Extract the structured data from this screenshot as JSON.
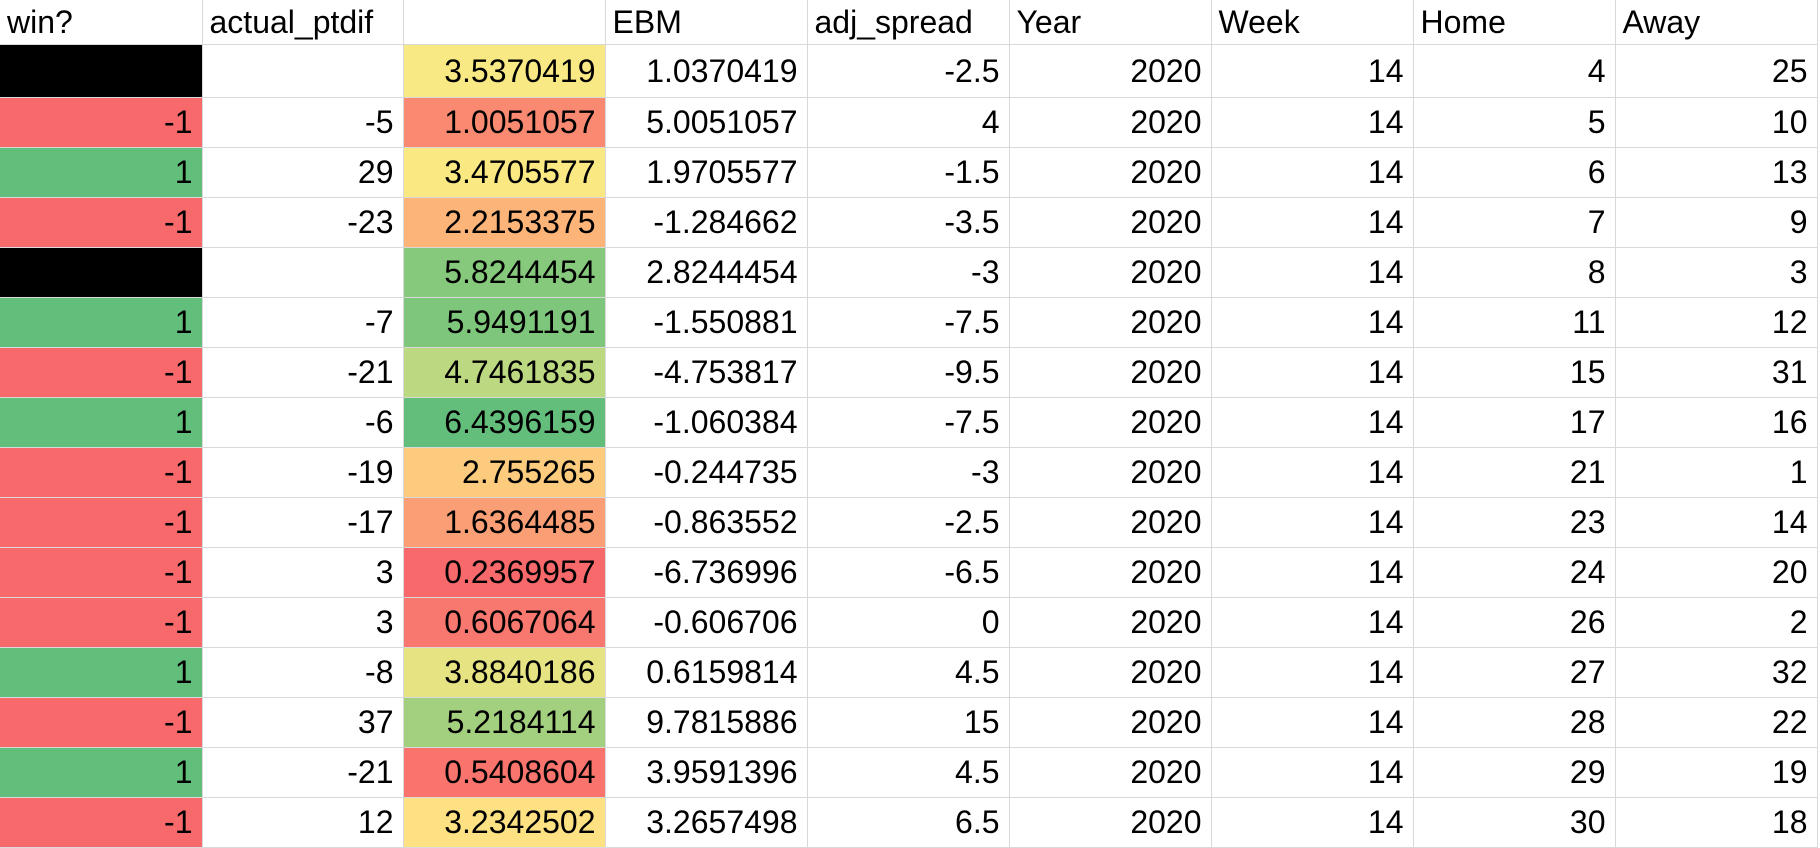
{
  "colors": {
    "win_positive": "#62bf7b",
    "win_negative": "#f8696b",
    "win_blank": "#000000",
    "grid_line": "#d9d9d9"
  },
  "sheet": {
    "headers": [
      "win?",
      "actual_ptdif",
      "",
      "EBM",
      "adj_spread",
      "Year",
      "Week",
      "Home",
      "Away"
    ],
    "rows": [
      {
        "win": "",
        "win_color": "#000000",
        "actual_ptdif": "",
        "score": "3.5370419",
        "score_color": "#f9e984",
        "ebm": "1.0370419",
        "adj_spread": "-2.5",
        "year": "2020",
        "week": "14",
        "home": "4",
        "away": "25"
      },
      {
        "win": "-1",
        "win_color": "#f8696b",
        "actual_ptdif": "-5",
        "score": "1.0051057",
        "score_color": "#f98970",
        "ebm": "5.0051057",
        "adj_spread": "4",
        "year": "2020",
        "week": "14",
        "home": "5",
        "away": "10"
      },
      {
        "win": "1",
        "win_color": "#62bf7b",
        "actual_ptdif": "29",
        "score": "3.4705577",
        "score_color": "#fae983",
        "ebm": "1.9705577",
        "adj_spread": "-1.5",
        "year": "2020",
        "week": "14",
        "home": "6",
        "away": "13"
      },
      {
        "win": "-1",
        "win_color": "#f8696b",
        "actual_ptdif": "-23",
        "score": "2.2153375",
        "score_color": "#fcb479",
        "ebm": "-1.284662",
        "adj_spread": "-3.5",
        "year": "2020",
        "week": "14",
        "home": "7",
        "away": "9"
      },
      {
        "win": "",
        "win_color": "#000000",
        "actual_ptdif": "",
        "score": "5.8244454",
        "score_color": "#86c97d",
        "ebm": "2.8244454",
        "adj_spread": "-3",
        "year": "2020",
        "week": "14",
        "home": "8",
        "away": "3"
      },
      {
        "win": "1",
        "win_color": "#62bf7b",
        "actual_ptdif": "-7",
        "score": "5.9491191",
        "score_color": "#7dc67c",
        "ebm": "-1.550881",
        "adj_spread": "-7.5",
        "year": "2020",
        "week": "14",
        "home": "11",
        "away": "12"
      },
      {
        "win": "-1",
        "win_color": "#f8696b",
        "actual_ptdif": "-21",
        "score": "4.7461835",
        "score_color": "#bcd880",
        "ebm": "-4.753817",
        "adj_spread": "-9.5",
        "year": "2020",
        "week": "14",
        "home": "15",
        "away": "31"
      },
      {
        "win": "1",
        "win_color": "#62bf7b",
        "actual_ptdif": "-6",
        "score": "6.4396159",
        "score_color": "#63be7b",
        "ebm": "-1.060384",
        "adj_spread": "-7.5",
        "year": "2020",
        "week": "14",
        "home": "17",
        "away": "16"
      },
      {
        "win": "-1",
        "win_color": "#f8696b",
        "actual_ptdif": "-19",
        "score": "2.755265",
        "score_color": "#fdcb7d",
        "ebm": "-0.244735",
        "adj_spread": "-3",
        "year": "2020",
        "week": "14",
        "home": "21",
        "away": "1"
      },
      {
        "win": "-1",
        "win_color": "#f8696b",
        "actual_ptdif": "-17",
        "score": "1.6364485",
        "score_color": "#fa9f75",
        "ebm": "-0.863552",
        "adj_spread": "-2.5",
        "year": "2020",
        "week": "14",
        "home": "23",
        "away": "14"
      },
      {
        "win": "-1",
        "win_color": "#f8696b",
        "actual_ptdif": "3",
        "score": "0.2369957",
        "score_color": "#f8696b",
        "ebm": "-6.736996",
        "adj_spread": "-6.5",
        "year": "2020",
        "week": "14",
        "home": "24",
        "away": "20"
      },
      {
        "win": "-1",
        "win_color": "#f8696b",
        "actual_ptdif": "3",
        "score": "0.6067064",
        "score_color": "#f8776e",
        "ebm": "-0.606706",
        "adj_spread": "0",
        "year": "2020",
        "week": "14",
        "home": "26",
        "away": "2"
      },
      {
        "win": "1",
        "win_color": "#62bf7b",
        "actual_ptdif": "-8",
        "score": "3.8840186",
        "score_color": "#e6e382",
        "ebm": "0.6159814",
        "adj_spread": "4.5",
        "year": "2020",
        "week": "14",
        "home": "27",
        "away": "32"
      },
      {
        "win": "-1",
        "win_color": "#f8696b",
        "actual_ptdif": "37",
        "score": "5.2184114",
        "score_color": "#a3d07f",
        "ebm": "9.7815886",
        "adj_spread": "15",
        "year": "2020",
        "week": "14",
        "home": "28",
        "away": "22"
      },
      {
        "win": "1",
        "win_color": "#62bf7b",
        "actual_ptdif": "-21",
        "score": "0.5408604",
        "score_color": "#f8746d",
        "ebm": "3.9591396",
        "adj_spread": "4.5",
        "year": "2020",
        "week": "14",
        "home": "29",
        "away": "19"
      },
      {
        "win": "-1",
        "win_color": "#f8696b",
        "actual_ptdif": "12",
        "score": "3.2342502",
        "score_color": "#fee182",
        "ebm": "3.2657498",
        "adj_spread": "6.5",
        "year": "2020",
        "week": "14",
        "home": "30",
        "away": "18"
      }
    ]
  }
}
